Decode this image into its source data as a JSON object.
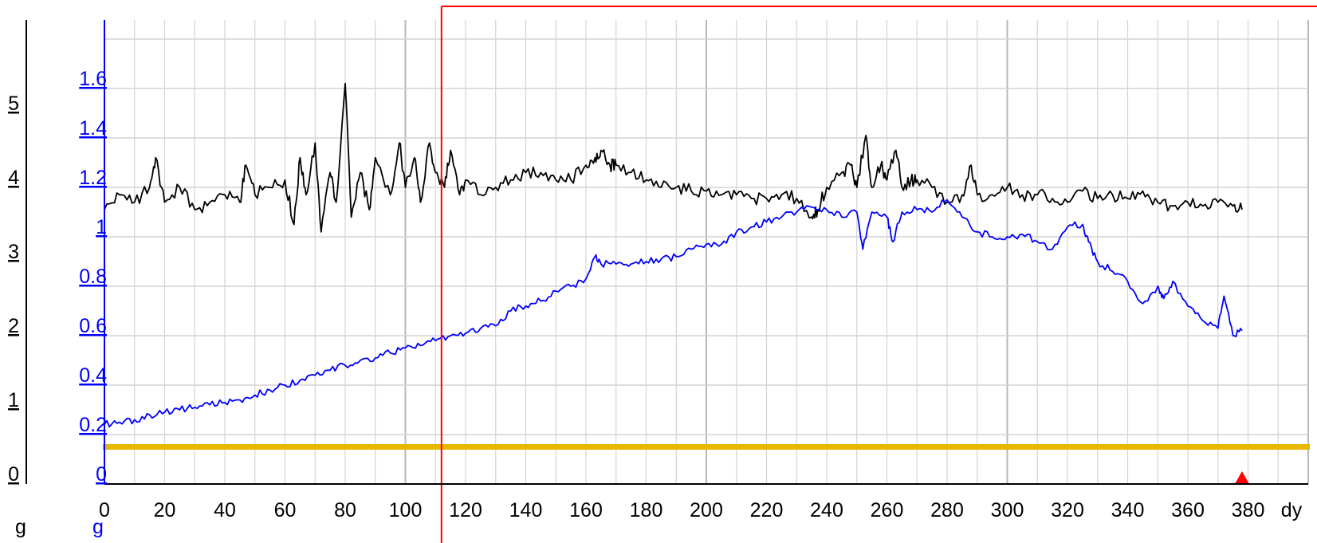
{
  "chart_data": {
    "type": "line",
    "title": "",
    "xlabel": "dy",
    "x_ticks": [
      "0",
      "20",
      "40",
      "60",
      "80",
      "100",
      "120",
      "140",
      "160",
      "180",
      "200",
      "220",
      "240",
      "260",
      "280",
      "300",
      "320",
      "340",
      "360",
      "380"
    ],
    "xlim": [
      0,
      400
    ],
    "left_axis": {
      "unit": "g",
      "ticks": [
        "0",
        "1",
        "2",
        "3",
        "4",
        "5"
      ],
      "ylim": [
        0,
        6
      ],
      "color": "#000000"
    },
    "right_axis": {
      "unit": "g",
      "ticks": [
        "0",
        "0.2",
        "0.4",
        "0.6",
        "0.8",
        "1",
        "1.2",
        "1.4",
        "1.6"
      ],
      "ylim": [
        0,
        1.8
      ],
      "color": "#0000ff"
    },
    "grid": true,
    "series": [
      {
        "axis": "left",
        "color": "#000000",
        "x": [
          0,
          5,
          10,
          15,
          17,
          20,
          25,
          30,
          35,
          40,
          45,
          47,
          50,
          55,
          60,
          63,
          65,
          67,
          70,
          72,
          75,
          77,
          80,
          82,
          85,
          88,
          90,
          95,
          98,
          100,
          103,
          105,
          108,
          110,
          113,
          115,
          118,
          120,
          125,
          130,
          135,
          140,
          145,
          150,
          155,
          160,
          163,
          165,
          168,
          170,
          175,
          180,
          185,
          190,
          195,
          200,
          205,
          210,
          215,
          220,
          225,
          230,
          235,
          237,
          240,
          245,
          248,
          250,
          253,
          255,
          258,
          260,
          263,
          265,
          268,
          270,
          275,
          280,
          285,
          288,
          290,
          295,
          300,
          305,
          310,
          315,
          320,
          325,
          330,
          335,
          340,
          345,
          350,
          355,
          360,
          365,
          370,
          375,
          378
        ],
        "y": [
          3.7,
          3.9,
          3.8,
          4.0,
          4.4,
          3.8,
          4.0,
          3.7,
          3.8,
          3.9,
          3.8,
          4.3,
          3.9,
          4.0,
          4.1,
          3.5,
          4.4,
          3.9,
          4.6,
          3.4,
          4.2,
          3.8,
          5.4,
          3.6,
          4.2,
          3.7,
          4.4,
          3.9,
          4.6,
          4.0,
          4.4,
          3.8,
          4.6,
          4.2,
          4.0,
          4.5,
          3.9,
          4.1,
          3.9,
          4.0,
          4.1,
          4.2,
          4.2,
          4.1,
          4.1,
          4.3,
          4.4,
          4.5,
          4.3,
          4.3,
          4.2,
          4.1,
          4.0,
          4.0,
          3.95,
          3.95,
          3.9,
          3.9,
          3.85,
          3.85,
          3.9,
          3.85,
          3.6,
          3.7,
          4.0,
          4.2,
          4.3,
          4.0,
          4.7,
          4.0,
          4.3,
          4.1,
          4.5,
          4.0,
          4.1,
          4.1,
          4.0,
          3.8,
          3.9,
          4.3,
          3.9,
          3.9,
          4.0,
          3.9,
          3.9,
          3.85,
          3.8,
          3.95,
          3.85,
          3.9,
          3.85,
          3.95,
          3.8,
          3.75,
          3.8,
          3.75,
          3.8,
          3.75,
          3.7
        ]
      },
      {
        "axis": "right",
        "color": "#0000ff",
        "x": [
          0,
          5,
          10,
          15,
          20,
          25,
          30,
          35,
          40,
          45,
          50,
          55,
          60,
          65,
          70,
          75,
          80,
          85,
          90,
          95,
          100,
          105,
          110,
          115,
          120,
          125,
          130,
          135,
          140,
          145,
          150,
          155,
          160,
          163,
          165,
          170,
          175,
          180,
          185,
          190,
          195,
          200,
          205,
          210,
          215,
          220,
          225,
          230,
          235,
          240,
          245,
          250,
          252,
          255,
          260,
          262,
          265,
          270,
          275,
          280,
          285,
          290,
          295,
          300,
          305,
          310,
          315,
          320,
          325,
          327,
          330,
          335,
          340,
          345,
          350,
          352,
          355,
          360,
          365,
          370,
          372,
          375,
          378
        ],
        "y": [
          0.24,
          0.25,
          0.26,
          0.28,
          0.29,
          0.3,
          0.31,
          0.32,
          0.33,
          0.34,
          0.36,
          0.38,
          0.4,
          0.42,
          0.44,
          0.46,
          0.48,
          0.5,
          0.51,
          0.53,
          0.55,
          0.56,
          0.58,
          0.6,
          0.61,
          0.63,
          0.64,
          0.7,
          0.72,
          0.74,
          0.78,
          0.8,
          0.83,
          0.92,
          0.89,
          0.89,
          0.89,
          0.9,
          0.91,
          0.92,
          0.95,
          0.97,
          0.97,
          1.02,
          1.04,
          1.06,
          1.08,
          1.1,
          1.12,
          1.11,
          1.08,
          1.1,
          0.95,
          1.1,
          1.08,
          0.98,
          1.1,
          1.11,
          1.1,
          1.15,
          1.08,
          1.02,
          1.0,
          1.0,
          1.01,
          0.98,
          0.95,
          1.04,
          1.05,
          0.98,
          0.9,
          0.86,
          0.82,
          0.73,
          0.8,
          0.75,
          0.82,
          0.72,
          0.66,
          0.63,
          0.76,
          0.6,
          0.62
        ]
      },
      {
        "axis": "left",
        "color": "#e8b800",
        "x": [
          0,
          400
        ],
        "y": [
          0.5,
          0.5
        ]
      }
    ],
    "marker": {
      "x": 112,
      "color": "#ff0000"
    },
    "current_position_marker": {
      "x": 378,
      "color": "#ff0000"
    }
  }
}
